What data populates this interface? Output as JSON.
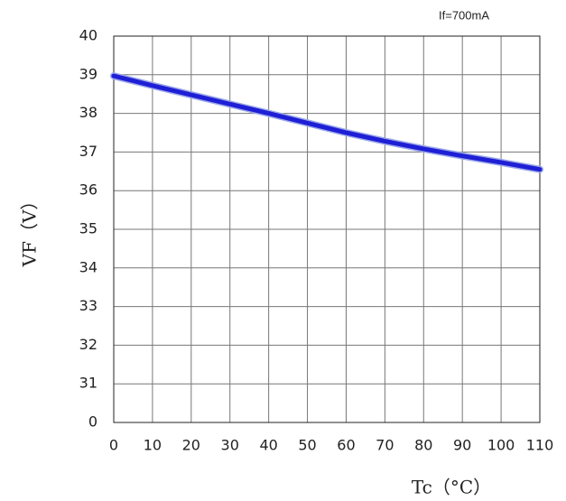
{
  "chart_data": {
    "type": "line",
    "annotation": "If=700mA",
    "xlabel": "Tc（°C）",
    "ylabel": "VF（V）",
    "x": [
      0,
      10,
      20,
      30,
      40,
      50,
      60,
      70,
      80,
      90,
      100,
      110
    ],
    "series": [
      {
        "name": "VF",
        "color": "#1f1fd6",
        "values": [
          38.97,
          38.72,
          38.48,
          38.24,
          38.0,
          37.75,
          37.5,
          37.28,
          37.08,
          36.9,
          36.73,
          36.55
        ]
      }
    ],
    "xlim": [
      0,
      110
    ],
    "xticks": [
      0,
      10,
      20,
      30,
      40,
      50,
      60,
      70,
      80,
      90,
      100,
      110
    ],
    "ylim": [
      30,
      40
    ],
    "yticks": [
      {
        "value": 30,
        "label": "0"
      },
      31,
      32,
      33,
      34,
      35,
      36,
      37,
      38,
      39,
      40
    ],
    "grid": true
  }
}
